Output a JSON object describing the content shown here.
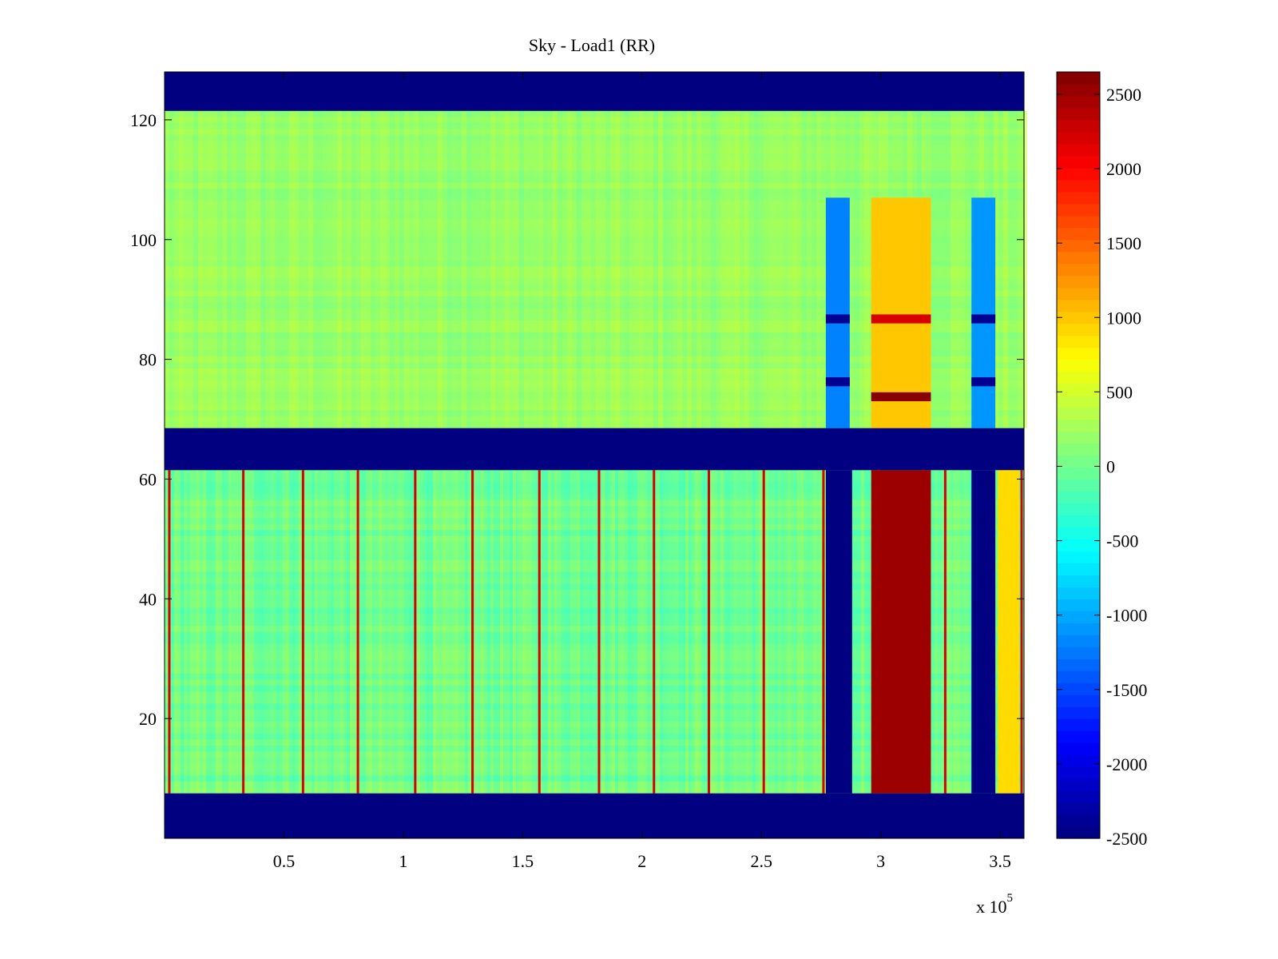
{
  "chart_data": {
    "type": "heatmap",
    "title": "Sky - Load1 (RR)",
    "xlabel": "",
    "ylabel": "",
    "xlim": [
      0,
      3.6
    ],
    "ylim": [
      0,
      128
    ],
    "x_scale_label": "x 10",
    "x_scale_exponent": "5",
    "x_ticks": [
      0.5,
      1,
      1.5,
      2,
      2.5,
      3,
      3.5
    ],
    "x_tick_labels": [
      "0.5",
      "1",
      "1.5",
      "2",
      "2.5",
      "3",
      "3.5"
    ],
    "y_ticks": [
      20,
      40,
      60,
      80,
      100,
      120
    ],
    "y_tick_labels": [
      "20",
      "40",
      "60",
      "80",
      "100",
      "120"
    ],
    "colormap": "jet",
    "color_range": [
      -2500,
      2650
    ],
    "colorbar_ticks": [
      2500,
      2000,
      1500,
      1000,
      500,
      0,
      -500,
      -1000,
      -1500,
      -2000,
      -2500
    ],
    "colorbar_tick_labels": [
      "2500",
      "2000",
      "1500",
      "1000",
      "500",
      "0",
      "-500",
      "-1000",
      "-1500",
      "-2000",
      "-2500"
    ],
    "masked_row_bands": [
      [
        0,
        7.5
      ],
      [
        61.5,
        68.5
      ],
      [
        121.5,
        128
      ]
    ],
    "upper_block": {
      "y_range": [
        68.5,
        121.5
      ],
      "background_value": 200,
      "column_features": [
        {
          "x_range": [
            2.77,
            2.87
          ],
          "value": -1200,
          "y_range": [
            68.5,
            107
          ]
        },
        {
          "x_range": [
            2.96,
            3.21
          ],
          "value": 1000,
          "y_range": [
            68.5,
            107
          ]
        },
        {
          "x_range": [
            3.38,
            3.48
          ],
          "value": -1100,
          "y_range": [
            68.5,
            107
          ]
        }
      ],
      "row_features": [
        {
          "y": 75.5,
          "value": -2400,
          "x_ranges": [
            [
              2.77,
              2.87
            ],
            [
              3.38,
              3.48
            ]
          ]
        },
        {
          "y": 73,
          "value": 2600,
          "x_range": [
            2.96,
            3.21
          ]
        },
        {
          "y": 86,
          "value": -2400,
          "x_ranges": [
            [
              2.77,
              2.87
            ],
            [
              3.38,
              3.48
            ]
          ]
        },
        {
          "y": 86,
          "value": 2200,
          "x_range": [
            2.96,
            3.21
          ]
        }
      ]
    },
    "lower_block": {
      "y_range": [
        7.5,
        61.5
      ],
      "background_value": 0,
      "column_features": [
        {
          "x_range": [
            2.77,
            2.88
          ],
          "value": -2500
        },
        {
          "x_range": [
            2.96,
            3.21
          ],
          "value": 2500
        },
        {
          "x_range": [
            3.38,
            3.48
          ],
          "value": -2500
        },
        {
          "x_range": [
            3.49,
            3.58
          ],
          "value": 900
        }
      ],
      "stripe_x": [
        0.02,
        0.33,
        0.58,
        0.81,
        1.05,
        1.29,
        1.57,
        1.82,
        2.05,
        2.28,
        2.51,
        2.76,
        3.27,
        3.59
      ],
      "stripe_value": 2200
    }
  }
}
